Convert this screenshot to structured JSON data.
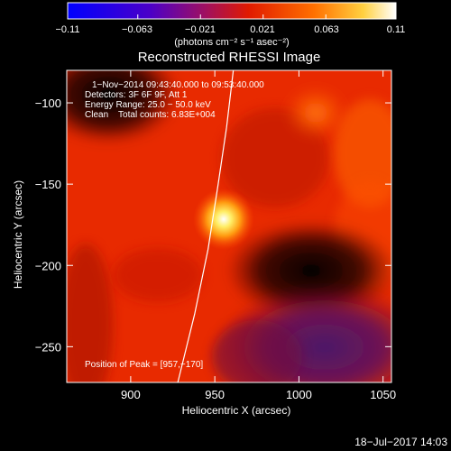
{
  "chart_data": {
    "type": "heatmap",
    "title": "Reconstructed RHESSI Image",
    "xlabel": "Heliocentric X (arcsec)",
    "ylabel": "Heliocentric Y (arcsec)",
    "xlim": [
      862,
      1055
    ],
    "ylim": [
      -272,
      -80
    ],
    "x_ticks": [
      900,
      950,
      1000,
      1050
    ],
    "y_ticks": [
      -100,
      -150,
      -200,
      -250
    ],
    "colorbar": {
      "min": -0.11,
      "max": 0.11,
      "tick_values": [
        -0.11,
        -0.063,
        -0.021,
        0.021,
        0.063,
        0.11
      ],
      "tick_labels": [
        "−0.11",
        "−0.063",
        "−0.021",
        "0.021",
        "0.063",
        "0.11"
      ],
      "unit_label": "(photons cm⁻² s⁻¹ asec⁻²)"
    },
    "info_lines": [
      "1−Nov−2014 09:43:40.000 to 09:53:40.000",
      "Detectors: 3F 6F 9F, Att 1",
      "Energy Range: 25.0 − 50.0 keV",
      "Clean    Total counts: 6.83E+004"
    ],
    "peak_label": "Position of Peak = [957,−170]",
    "peak": [
      957,
      -170
    ],
    "limb_curve": [
      [
        928,
        -272
      ],
      [
        938,
        -230
      ],
      [
        946,
        -190
      ],
      [
        952,
        -150
      ],
      [
        957,
        -115
      ],
      [
        961,
        -80
      ]
    ],
    "grid": false
  },
  "footer": {
    "timestamp": "18−Jul−2017 14:03"
  }
}
